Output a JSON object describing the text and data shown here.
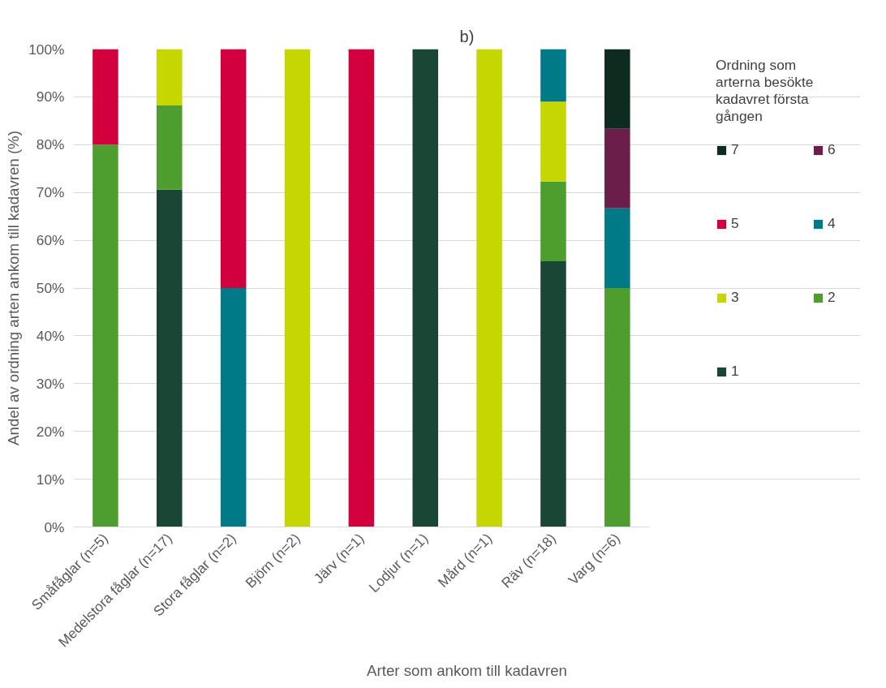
{
  "chart_data": {
    "type": "bar",
    "stacked": true,
    "title": "b)",
    "xlabel": "Arter som ankom till kadavren",
    "ylabel": "Andel av ordning arten ankom till kadavren (%)",
    "legend_title": "Ordning som arterna besökte kadavret första gången",
    "legend": "right",
    "grid": "y",
    "categories": [
      "Småfåglar (n=5)",
      "Medelstora fåglar (n=17)",
      "Stora fåglar (n=2)",
      "Björn (n=2)",
      "Järv (n=1)",
      "Lodjur (n=1)",
      "Mård (n=1)",
      "Räv (n=18)",
      "Varg (n=6)"
    ],
    "ylim": [
      0,
      100
    ],
    "yticks": [
      {
        "value": 0,
        "label": "0%"
      },
      {
        "value": 10,
        "label": "10%"
      },
      {
        "value": 20,
        "label": "20%"
      },
      {
        "value": 30,
        "label": "30%"
      },
      {
        "value": 40,
        "label": "40%"
      },
      {
        "value": 50,
        "label": "50%"
      },
      {
        "value": 60,
        "label": "60%"
      },
      {
        "value": 70,
        "label": "70%"
      },
      {
        "value": 80,
        "label": "80%"
      },
      {
        "value": 90,
        "label": "90%"
      },
      {
        "value": 100,
        "label": "100%"
      }
    ],
    "series": [
      {
        "name": "1",
        "color": "#1a4636",
        "values": [
          null,
          70.6,
          null,
          null,
          null,
          100,
          null,
          55.6,
          null
        ]
      },
      {
        "name": "2",
        "color": "#4e9e2f",
        "values": [
          80,
          17.6,
          null,
          null,
          null,
          null,
          null,
          16.7,
          50
        ]
      },
      {
        "name": "3",
        "color": "#c5d600",
        "values": [
          null,
          11.8,
          null,
          100,
          null,
          null,
          100,
          16.7,
          null
        ]
      },
      {
        "name": "4",
        "color": "#007a87",
        "values": [
          null,
          null,
          50,
          null,
          null,
          null,
          null,
          11.1,
          16.7
        ]
      },
      {
        "name": "5",
        "color": "#d2003c",
        "values": [
          20,
          null,
          50,
          null,
          100,
          null,
          null,
          null,
          null
        ]
      },
      {
        "name": "6",
        "color": "#6b1e4a",
        "values": [
          null,
          null,
          null,
          null,
          null,
          null,
          null,
          null,
          16.6
        ]
      },
      {
        "name": "7",
        "color": "#0d2b1e",
        "values": [
          null,
          null,
          null,
          null,
          null,
          null,
          null,
          null,
          16.7
        ]
      }
    ]
  }
}
